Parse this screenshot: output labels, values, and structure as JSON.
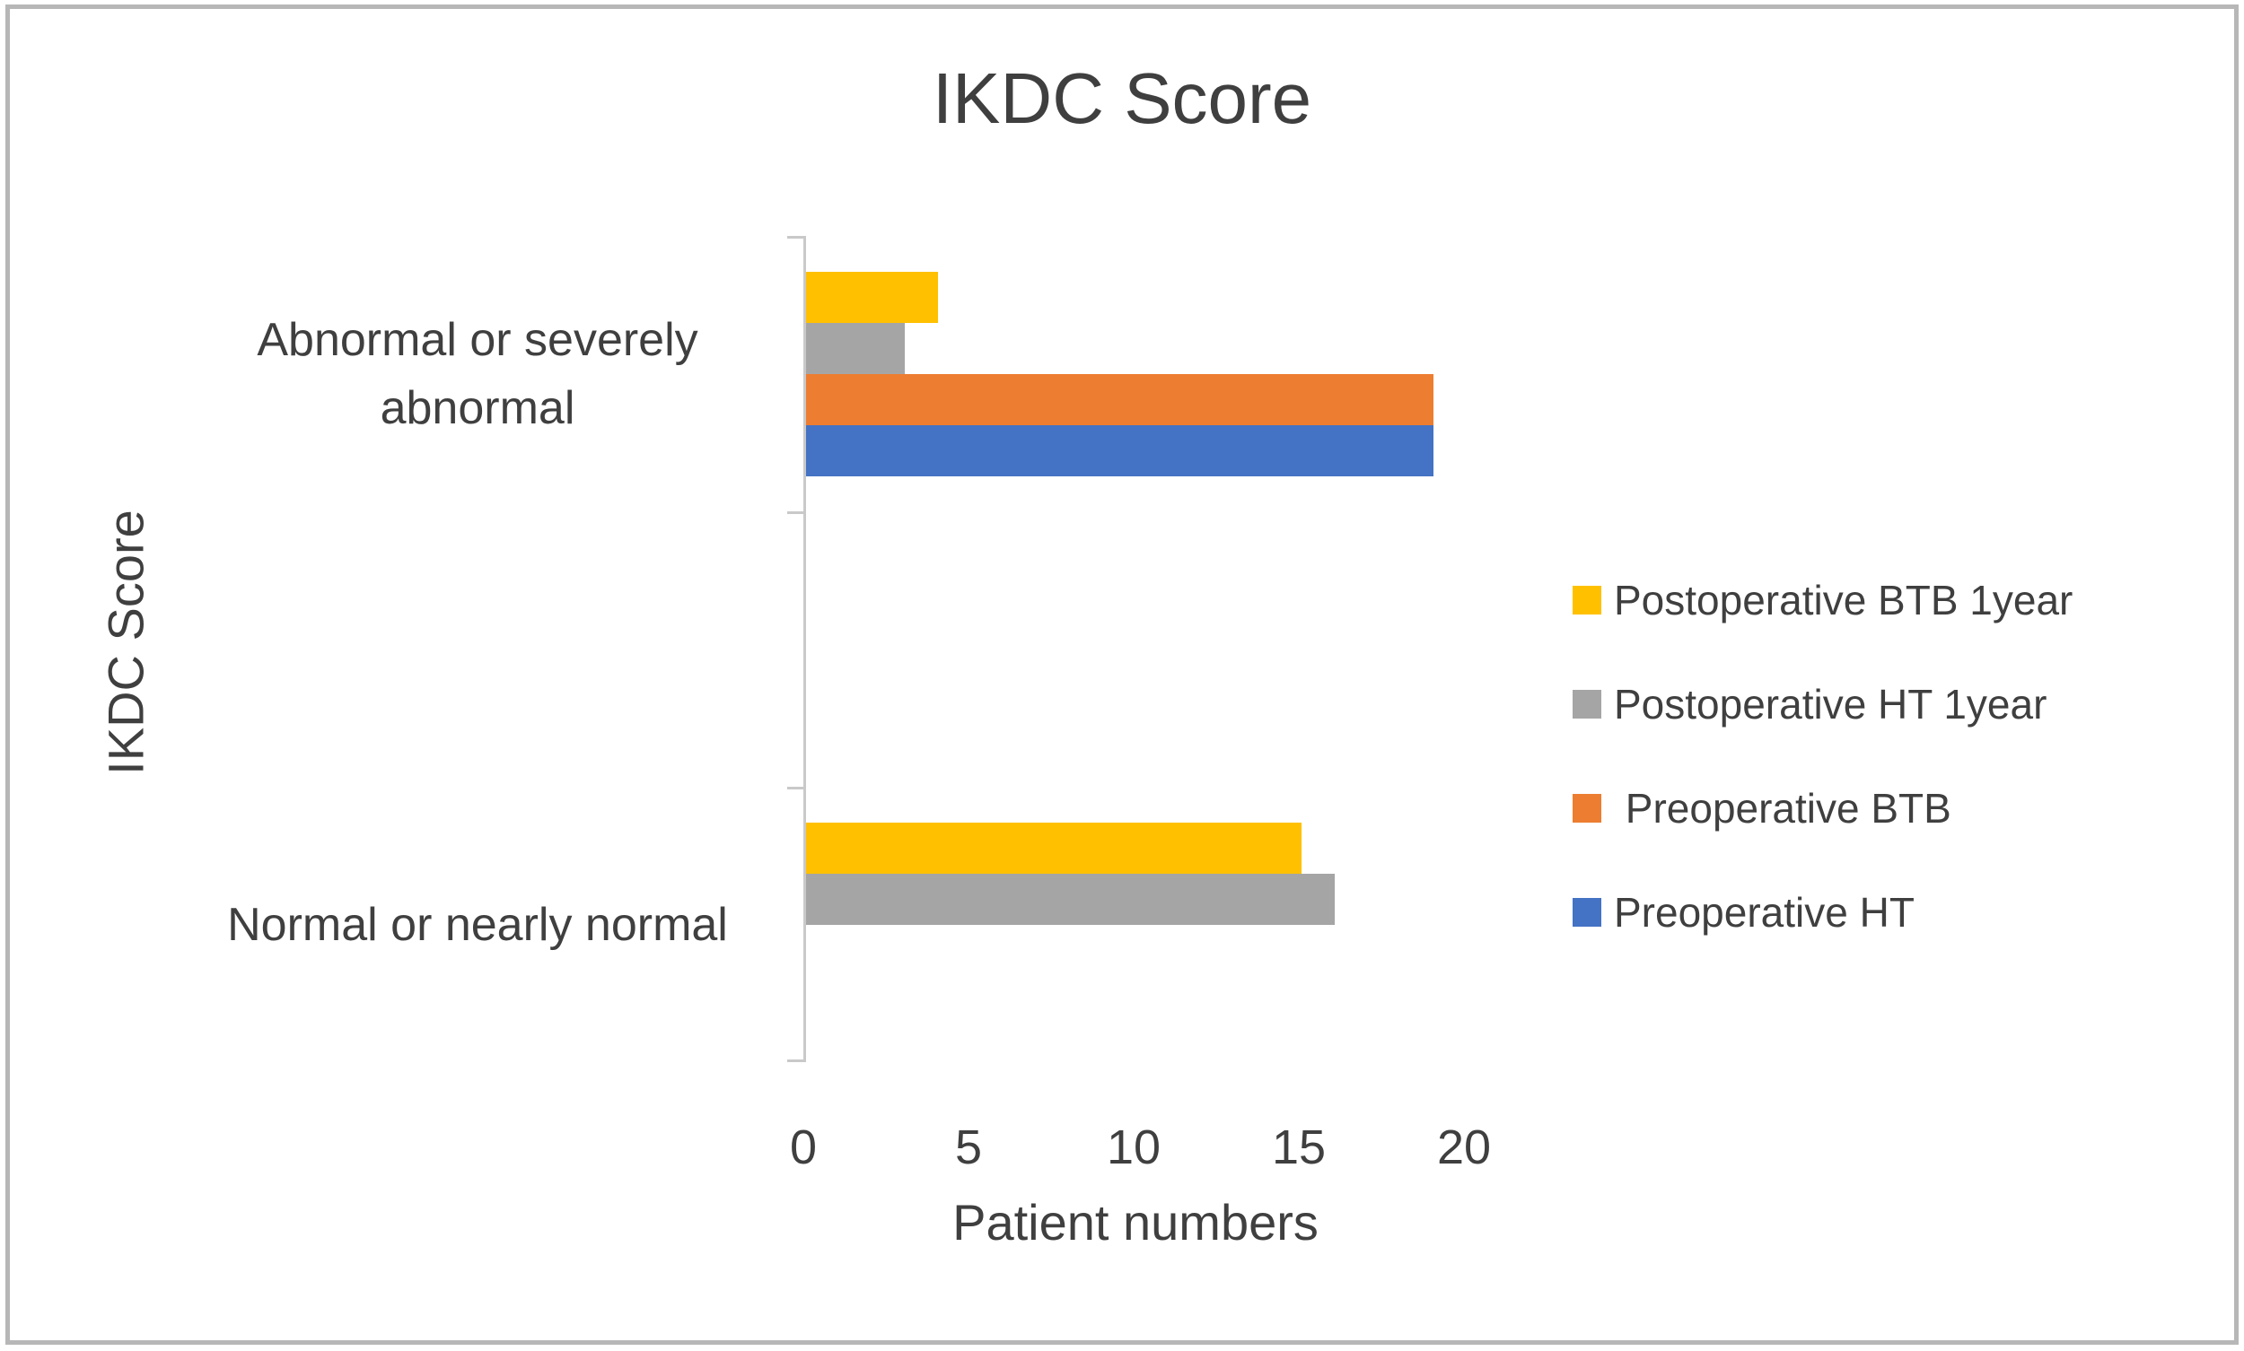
{
  "chart_data": {
    "type": "bar",
    "orientation": "horizontal",
    "title": "IKDC Score",
    "xlabel": "Patient numbers",
    "ylabel": "IKDC Score",
    "categories": [
      "Abnormal or severely abnormal",
      "Normal or nearly normal"
    ],
    "series": [
      {
        "name": "Postoperative BTB 1year",
        "color": "#FFC000",
        "values": [
          4,
          15
        ]
      },
      {
        "name": "Postoperative HT 1year",
        "color": "#A5A5A5",
        "values": [
          3,
          16
        ]
      },
      {
        "name": " Preoperative BTB",
        "color": "#ED7D31",
        "values": [
          19,
          0
        ]
      },
      {
        "name": "Preoperative HT",
        "color": "#4472C4",
        "values": [
          19,
          0
        ]
      }
    ],
    "x_ticks": [
      "0",
      "5",
      "10",
      "15",
      "20"
    ],
    "xlim": [
      0,
      20
    ],
    "legend_position": "right",
    "grid": false,
    "axis_color": "#C9C9C9",
    "text_color": "#3F3F3F",
    "border_color": "#B7B7B7",
    "background": "#FFFFFF"
  }
}
